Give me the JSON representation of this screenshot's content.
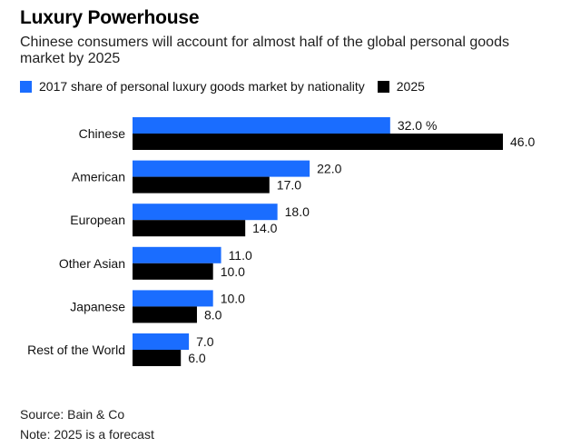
{
  "header": {
    "title": "Luxury Powerhouse",
    "subtitle": "Chinese consumers will account for almost half of the global personal goods market by 2025"
  },
  "footer": {
    "source": "Source: Bain & Co",
    "note": "Note: 2025 is a forecast"
  },
  "chart_data": {
    "type": "bar",
    "orientation": "horizontal",
    "categories": [
      "Chinese",
      "American",
      "European",
      "Other Asian",
      "Japanese",
      "Rest of the World"
    ],
    "series": [
      {
        "name": "2017 share of personal luxury goods market by nationality",
        "color": "#1a6dff",
        "values": [
          32.0,
          22.0,
          18.0,
          11.0,
          10.0,
          7.0
        ],
        "labels": [
          "32.0 %",
          "22.0",
          "18.0",
          "11.0",
          "10.0",
          "7.0"
        ]
      },
      {
        "name": "2025",
        "color": "#000000",
        "values": [
          46.0,
          17.0,
          14.0,
          10.0,
          8.0,
          6.0
        ],
        "labels": [
          "46.0",
          "17.0",
          "14.0",
          "10.0",
          "8.0",
          "6.0"
        ]
      }
    ],
    "xlim": [
      0,
      46
    ],
    "legend_position": "top-left",
    "grid": false
  }
}
